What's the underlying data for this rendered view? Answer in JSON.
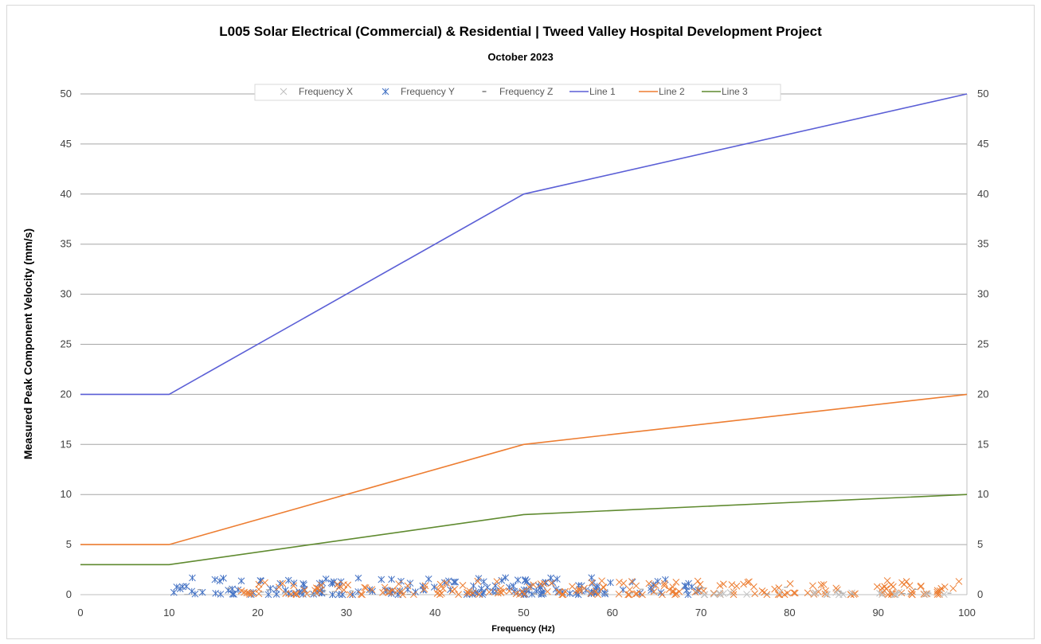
{
  "chart_data": {
    "type": "line",
    "title": "L005 Solar Electrical (Commercial) & Residential | Tweed Valley Hospital Development Project",
    "subtitle": "October 2023",
    "xlabel": "Frequency (Hz)",
    "ylabel": "Measured Peak Component Velocity (mm/s)",
    "xlim": [
      0,
      100
    ],
    "ylim": [
      0,
      50
    ],
    "x_ticks": [
      0,
      10,
      20,
      30,
      40,
      50,
      60,
      70,
      80,
      90,
      100
    ],
    "y_ticks": [
      0,
      5,
      10,
      15,
      20,
      25,
      30,
      35,
      40,
      45,
      50
    ],
    "secondary_y_axis": true,
    "grid": "horizontal",
    "legend_position": "top",
    "lines": [
      {
        "name": "Line 1",
        "color": "#5b5fd6",
        "points": [
          [
            0,
            20
          ],
          [
            10,
            20
          ],
          [
            50,
            40
          ],
          [
            100,
            50
          ]
        ]
      },
      {
        "name": "Line 2",
        "color": "#ed7d31",
        "points": [
          [
            0,
            5
          ],
          [
            10,
            5
          ],
          [
            50,
            15
          ],
          [
            100,
            20
          ]
        ]
      },
      {
        "name": "Line 3",
        "color": "#5f8a2f",
        "points": [
          [
            0,
            3
          ],
          [
            10,
            3
          ],
          [
            50,
            8
          ],
          [
            100,
            10
          ]
        ]
      }
    ],
    "scatter_series": [
      {
        "name": "Frequency X",
        "marker": "x",
        "color": "#bfbfbf"
      },
      {
        "name": "Frequency Y",
        "marker": "asterisk",
        "color": "#4472c4"
      },
      {
        "name": "Frequency Z",
        "marker": "dash",
        "color": "#ed7d31"
      }
    ],
    "scatter_clusters": [
      {
        "series": "Frequency Y",
        "x_range": [
          10,
          70
        ],
        "y_max": 1.7,
        "count": 170,
        "color": "#4472c4"
      },
      {
        "series": "Frequency X",
        "x_range": [
          18,
          100
        ],
        "y_max": 1.4,
        "count": 210,
        "color": "#ed7d31"
      },
      {
        "series": "Frequency X",
        "x_range": [
          70,
          100
        ],
        "y_max": 0.3,
        "count": 25,
        "color": "#bfbfbf"
      },
      {
        "series": "Frequency Z",
        "x_range": [
          10,
          100
        ],
        "y_max": 0.8,
        "count": 40,
        "color": "#a5a5a5"
      }
    ]
  }
}
